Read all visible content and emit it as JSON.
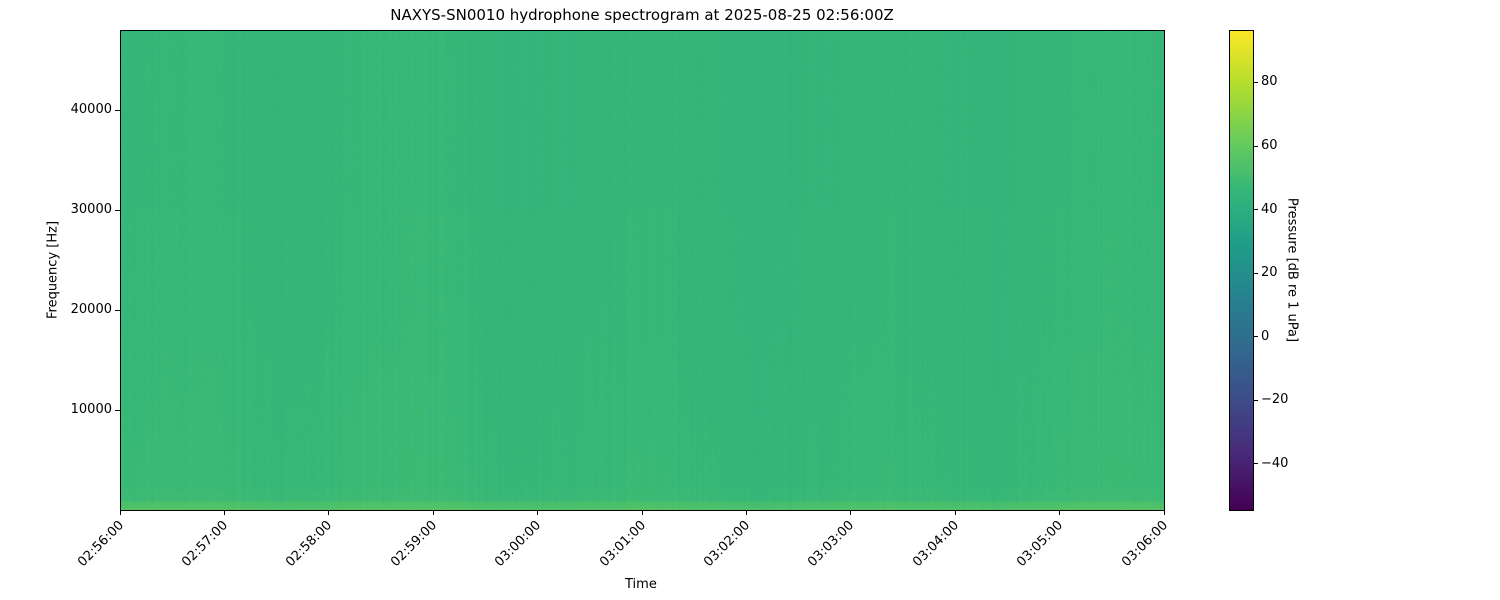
{
  "chart_data": {
    "type": "heatmap",
    "title": "NAXYS-SN0010 hydrophone spectrogram at 2025-08-25 02:56:00Z",
    "xlabel": "Time",
    "ylabel": "Frequency [Hz]",
    "xlim": [
      "02:56:00",
      "03:06:00"
    ],
    "xticks": [
      "02:56:00",
      "02:57:00",
      "02:58:00",
      "02:59:00",
      "03:00:00",
      "03:01:00",
      "03:02:00",
      "03:03:00",
      "03:04:00",
      "03:05:00",
      "03:06:00"
    ],
    "ylim": [
      0,
      48000
    ],
    "yticks": [
      10000,
      20000,
      30000,
      40000
    ],
    "yticklabels": [
      "10000",
      "20000",
      "30000",
      "40000"
    ],
    "colormap": "viridis",
    "colorbar": {
      "label": "Pressure [dB re 1 uPa]",
      "range": [
        -54.5,
        96.5
      ],
      "ticks": [
        -40,
        -20,
        0,
        20,
        40,
        60,
        80
      ],
      "ticklabels": [
        "−40",
        "−20",
        "0",
        "20",
        "40",
        "60",
        "80"
      ]
    },
    "typical_level_db": 46,
    "low_frequency_band_level_db": 55,
    "grid": false
  }
}
